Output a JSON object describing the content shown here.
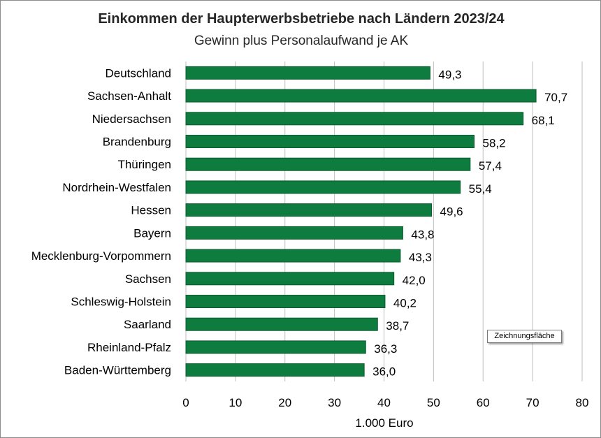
{
  "chart_data": {
    "type": "bar",
    "orientation": "horizontal",
    "title": "Einkommen der Haupterwerbsbetriebe nach Ländern 2023/24",
    "subtitle": "Gewinn plus Personalaufwand je AK",
    "xlabel": "1.000 Euro",
    "ylabel": "",
    "xlim": [
      0,
      80
    ],
    "x_ticks": [
      "0",
      "10",
      "20",
      "30",
      "40",
      "50",
      "60",
      "70",
      "80"
    ],
    "grid": "vertical",
    "bar_color": "#0e7c3e",
    "categories": [
      "Deutschland",
      "Sachsen-Anhalt",
      "Niedersachsen",
      "Brandenburg",
      "Thüringen",
      "Nordrhein-Westfalen",
      "Hessen",
      "Bayern",
      "Mecklenburg-Vorpommern",
      "Sachsen",
      "Schleswig-Holstein",
      "Saarland",
      "Rheinland-Pfalz",
      "Baden-Württemberg"
    ],
    "values": [
      49.3,
      70.7,
      68.1,
      58.2,
      57.4,
      55.4,
      49.6,
      43.8,
      43.3,
      42.0,
      40.2,
      38.7,
      36.3,
      36.0
    ],
    "value_labels": [
      "49,3",
      "70,7",
      "68,1",
      "58,2",
      "57,4",
      "55,4",
      "49,6",
      "43,8",
      "43,3",
      "42,0",
      "40,2",
      "38,7",
      "36,3",
      "36,0"
    ]
  },
  "tooltip": {
    "text": "Zeichnungsfläche"
  }
}
